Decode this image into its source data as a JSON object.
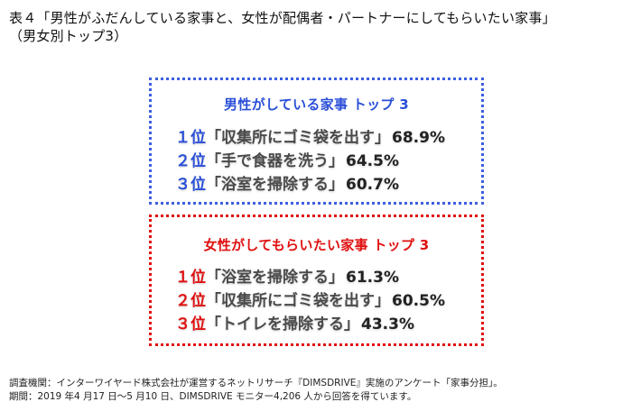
{
  "title": {
    "line1": "表４「男性がふだんしている家事と、女性が配偶者・パートナーにしてもらいたい家事」",
    "line2": "（男女別トップ3）"
  },
  "male_box": {
    "heading": "男性がしている家事 トップ 3",
    "color": "#2a4fd8",
    "items": [
      {
        "rank": "１位",
        "item": "「収集所にゴミ袋を出す」",
        "percent": "68.9%"
      },
      {
        "rank": "２位",
        "item": "「手で食器を洗う」",
        "percent": "64.5%"
      },
      {
        "rank": "３位",
        "item": "「浴室を掃除する」",
        "percent": "60.7%"
      }
    ]
  },
  "female_box": {
    "heading": "女性がしてもらいたい家事 トップ 3",
    "color": "#e01010",
    "items": [
      {
        "rank": "１位",
        "item": "「浴室を掃除する」",
        "percent": "61.3%"
      },
      {
        "rank": "２位",
        "item": "「収集所にゴミ袋を出す」",
        "percent": "60.5%"
      },
      {
        "rank": "３位",
        "item": "「トイレを掃除する」",
        "percent": "43.3%"
      }
    ]
  },
  "footer": {
    "line1": "調査機関：インターワイヤード株式会社が運営するネットリサーチ『DIMSDRIVE』実施のアンケート「家事分担」。",
    "line2": "期間：2019 年4 月17 日～5 月10 日、DIMSDRIVE モニター4,206 人から回答を得ています。"
  }
}
